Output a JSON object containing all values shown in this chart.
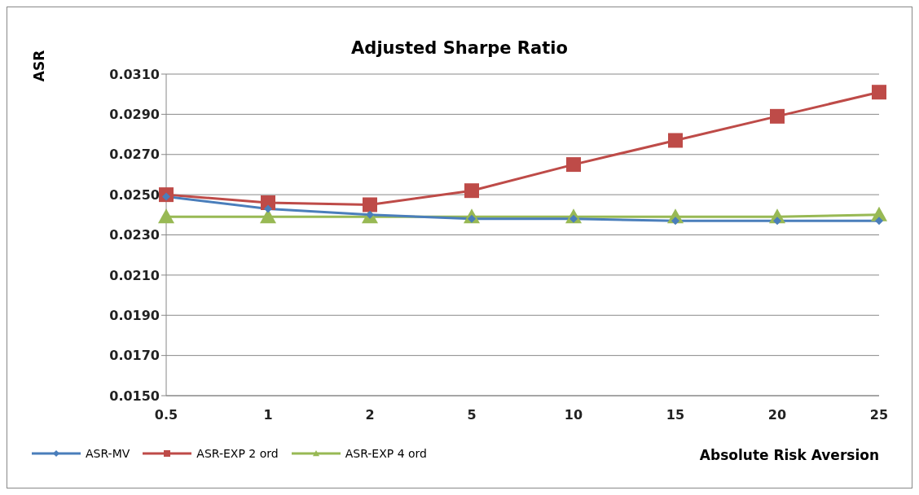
{
  "chart_data": {
    "type": "line",
    "title": "Adjusted Sharpe Ratio",
    "xlabel": "Absolute Risk Aversion",
    "ylabel": "ASR",
    "categories": [
      "0.5",
      "1",
      "2",
      "5",
      "10",
      "15",
      "20",
      "25"
    ],
    "series": [
      {
        "name": "ASR-MV",
        "color": "#4a7ebb",
        "marker": "diamond",
        "values": [
          0.0249,
          0.0243,
          0.024,
          0.0238,
          0.0238,
          0.0237,
          0.0237,
          0.0237
        ]
      },
      {
        "name": "ASR-EXP 2 ord",
        "color": "#be4b48",
        "marker": "square",
        "values": [
          0.025,
          0.0246,
          0.0245,
          0.0252,
          0.0265,
          0.0277,
          0.0289,
          0.0301
        ]
      },
      {
        "name": "ASR-EXP 4 ord",
        "color": "#98b954",
        "marker": "triangle",
        "values": [
          0.0239,
          0.0239,
          0.0239,
          0.0239,
          0.0239,
          0.0239,
          0.0239,
          0.024
        ]
      }
    ],
    "ylim": [
      0.015,
      0.031
    ],
    "yticks": [
      {
        "value": 0.015,
        "label": "0.0150"
      },
      {
        "value": 0.017,
        "label": "0.0170"
      },
      {
        "value": 0.019,
        "label": "0.0190"
      },
      {
        "value": 0.021,
        "label": "0.0210"
      },
      {
        "value": 0.023,
        "label": "0.0230"
      },
      {
        "value": 0.025,
        "label": "0.0250"
      },
      {
        "value": 0.027,
        "label": "0.0270"
      },
      {
        "value": 0.029,
        "label": "0.0290"
      },
      {
        "value": 0.031,
        "label": "0.0310"
      }
    ],
    "grid": "y",
    "legend": "bottom left"
  }
}
